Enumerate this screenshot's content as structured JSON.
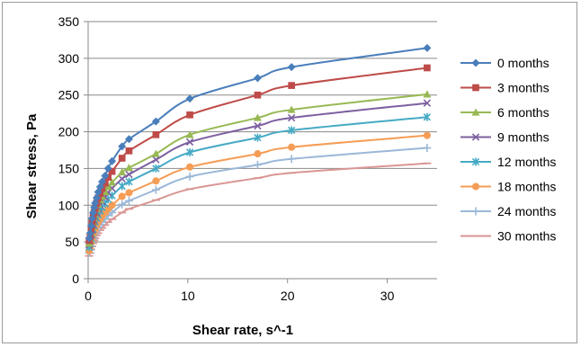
{
  "chart_data": {
    "type": "scatter",
    "title": "",
    "xlabel": "Shear rate, s^-1",
    "ylabel": "Shear stress, Pa",
    "xlim": [
      0,
      35
    ],
    "ylim": [
      0,
      350
    ],
    "xticks": [
      0,
      10,
      20,
      30
    ],
    "yticks": [
      0,
      50,
      100,
      150,
      200,
      250,
      300,
      350
    ],
    "grid": "horizontal",
    "legend": "right",
    "series": [
      {
        "name": "0 months",
        "color": "#4a7ebb",
        "marker": "diamond",
        "points": [
          [
            0.1,
            55
          ],
          [
            0.2,
            62
          ],
          [
            0.3,
            72
          ],
          [
            0.4,
            82
          ],
          [
            0.5,
            90
          ],
          [
            0.6,
            97
          ],
          [
            0.7,
            103
          ],
          [
            0.85,
            110
          ],
          [
            1.0,
            118
          ],
          [
            1.2,
            125
          ],
          [
            1.4,
            132
          ],
          [
            1.7,
            140
          ],
          [
            2.0,
            150
          ],
          [
            2.4,
            160
          ],
          [
            3.4,
            180
          ],
          [
            4.1,
            190
          ],
          [
            6.8,
            214
          ],
          [
            10.2,
            245
          ],
          [
            17.0,
            273
          ],
          [
            20.4,
            288
          ],
          [
            34.0,
            314
          ]
        ]
      },
      {
        "name": "3 months",
        "color": "#be4b48",
        "marker": "square",
        "points": [
          [
            0.1,
            52
          ],
          [
            0.2,
            58
          ],
          [
            0.3,
            67
          ],
          [
            0.4,
            76
          ],
          [
            0.5,
            84
          ],
          [
            0.6,
            90
          ],
          [
            0.7,
            96
          ],
          [
            0.85,
            103
          ],
          [
            1.0,
            110
          ],
          [
            1.2,
            116
          ],
          [
            1.4,
            123
          ],
          [
            1.7,
            130
          ],
          [
            2.0,
            138
          ],
          [
            2.4,
            146
          ],
          [
            3.4,
            164
          ],
          [
            4.1,
            174
          ],
          [
            6.8,
            196
          ],
          [
            10.2,
            223
          ],
          [
            17.0,
            250
          ],
          [
            20.4,
            263
          ],
          [
            34.0,
            287
          ]
        ]
      },
      {
        "name": "6 months",
        "color": "#98b954",
        "marker": "triangle",
        "points": [
          [
            0.1,
            48
          ],
          [
            0.2,
            54
          ],
          [
            0.3,
            62
          ],
          [
            0.4,
            70
          ],
          [
            0.5,
            77
          ],
          [
            0.6,
            83
          ],
          [
            0.7,
            88
          ],
          [
            0.85,
            95
          ],
          [
            1.0,
            101
          ],
          [
            1.2,
            107
          ],
          [
            1.4,
            112
          ],
          [
            1.7,
            118
          ],
          [
            2.0,
            125
          ],
          [
            2.4,
            131
          ],
          [
            3.4,
            145
          ],
          [
            4.1,
            151
          ],
          [
            6.8,
            170
          ],
          [
            10.2,
            196
          ],
          [
            17.0,
            219
          ],
          [
            20.4,
            230
          ],
          [
            34.0,
            251
          ]
        ]
      },
      {
        "name": "9 months",
        "color": "#7d60a0",
        "marker": "x",
        "points": [
          [
            0.1,
            46
          ],
          [
            0.2,
            52
          ],
          [
            0.3,
            59
          ],
          [
            0.4,
            66
          ],
          [
            0.5,
            73
          ],
          [
            0.6,
            78
          ],
          [
            0.7,
            83
          ],
          [
            0.85,
            89
          ],
          [
            1.0,
            95
          ],
          [
            1.2,
            100
          ],
          [
            1.4,
            105
          ],
          [
            1.7,
            111
          ],
          [
            2.0,
            117
          ],
          [
            2.4,
            123
          ],
          [
            3.4,
            136
          ],
          [
            4.1,
            142
          ],
          [
            6.8,
            162
          ],
          [
            10.2,
            186
          ],
          [
            17.0,
            208
          ],
          [
            20.4,
            219
          ],
          [
            34.0,
            239
          ]
        ]
      },
      {
        "name": "12 months",
        "color": "#46aac5",
        "marker": "star",
        "points": [
          [
            0.1,
            43
          ],
          [
            0.2,
            48
          ],
          [
            0.3,
            55
          ],
          [
            0.4,
            61
          ],
          [
            0.5,
            67
          ],
          [
            0.6,
            72
          ],
          [
            0.7,
            77
          ],
          [
            0.85,
            82
          ],
          [
            1.0,
            87
          ],
          [
            1.2,
            92
          ],
          [
            1.4,
            97
          ],
          [
            1.7,
            102
          ],
          [
            2.0,
            108
          ],
          [
            2.4,
            113
          ],
          [
            3.4,
            126
          ],
          [
            4.1,
            132
          ],
          [
            6.8,
            150
          ],
          [
            10.2,
            172
          ],
          [
            17.0,
            192
          ],
          [
            20.4,
            202
          ],
          [
            34.0,
            220
          ]
        ]
      },
      {
        "name": "18 months",
        "color": "#f59d56",
        "marker": "circle",
        "points": [
          [
            0.1,
            38
          ],
          [
            0.2,
            43
          ],
          [
            0.3,
            49
          ],
          [
            0.4,
            55
          ],
          [
            0.5,
            60
          ],
          [
            0.6,
            64
          ],
          [
            0.7,
            68
          ],
          [
            0.85,
            73
          ],
          [
            1.0,
            77
          ],
          [
            1.2,
            81
          ],
          [
            1.4,
            85
          ],
          [
            1.7,
            90
          ],
          [
            2.0,
            95
          ],
          [
            2.4,
            100
          ],
          [
            3.4,
            112
          ],
          [
            4.1,
            117
          ],
          [
            6.8,
            133
          ],
          [
            10.2,
            152
          ],
          [
            17.0,
            170
          ],
          [
            20.4,
            179
          ],
          [
            34.0,
            195
          ]
        ]
      },
      {
        "name": "24 months",
        "color": "#9bb8d8",
        "marker": "plus",
        "points": [
          [
            0.1,
            35
          ],
          [
            0.2,
            39
          ],
          [
            0.3,
            44
          ],
          [
            0.4,
            49
          ],
          [
            0.5,
            54
          ],
          [
            0.6,
            58
          ],
          [
            0.7,
            62
          ],
          [
            0.85,
            66
          ],
          [
            1.0,
            70
          ],
          [
            1.2,
            74
          ],
          [
            1.4,
            77
          ],
          [
            1.7,
            81
          ],
          [
            2.0,
            86
          ],
          [
            2.4,
            90
          ],
          [
            3.4,
            101
          ],
          [
            4.1,
            106
          ],
          [
            6.8,
            121
          ],
          [
            10.2,
            139
          ],
          [
            17.0,
            155
          ],
          [
            20.4,
            163
          ],
          [
            34.0,
            178
          ]
        ]
      },
      {
        "name": "30 months",
        "color": "#d99694",
        "marker": "dash",
        "points": [
          [
            0.1,
            31
          ],
          [
            0.2,
            35
          ],
          [
            0.3,
            40
          ],
          [
            0.4,
            44
          ],
          [
            0.5,
            48
          ],
          [
            0.6,
            52
          ],
          [
            0.7,
            55
          ],
          [
            0.85,
            59
          ],
          [
            1.0,
            62
          ],
          [
            1.2,
            66
          ],
          [
            1.4,
            69
          ],
          [
            1.7,
            73
          ],
          [
            2.0,
            77
          ],
          [
            2.4,
            81
          ],
          [
            3.4,
            90
          ],
          [
            4.1,
            95
          ],
          [
            6.8,
            107
          ],
          [
            10.2,
            122
          ],
          [
            17.0,
            137
          ],
          [
            20.4,
            144
          ],
          [
            34.0,
            157
          ]
        ]
      }
    ]
  }
}
